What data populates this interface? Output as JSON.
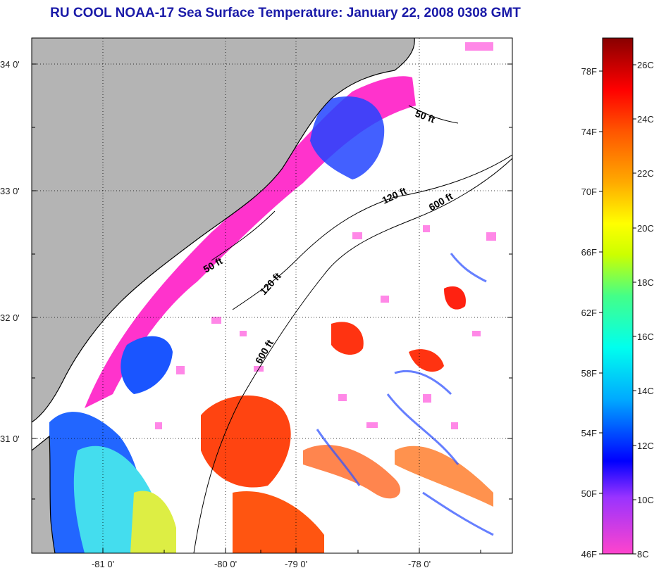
{
  "title": "RU COOL  NOAA-17  Sea Surface Temperature:  January 22, 2008 0308 GMT",
  "axes": {
    "lat_labels": [
      "34 0'",
      "33 0'",
      "32 0'",
      "31 0'"
    ],
    "lon_labels": [
      "-81 0'",
      "-80 0'",
      "-79 0'",
      "-78 0'"
    ]
  },
  "depth_contours": [
    "50 ft",
    "120 ft",
    "600 ft",
    "50 ft",
    "120 ft",
    "600 ft"
  ],
  "colorbar": {
    "fahrenheit": [
      "78F",
      "74F",
      "70F",
      "66F",
      "62F",
      "58F",
      "54F",
      "50F",
      "46F"
    ],
    "celsius": [
      "26C",
      "24C",
      "22C",
      "20C",
      "18C",
      "16C",
      "14C",
      "12C",
      "10C",
      "8C"
    ]
  },
  "colors": {
    "land": "#b4b4b4",
    "title": "#1a1aa8",
    "cold": "#ff33cc",
    "warm": "#ff3300"
  }
}
